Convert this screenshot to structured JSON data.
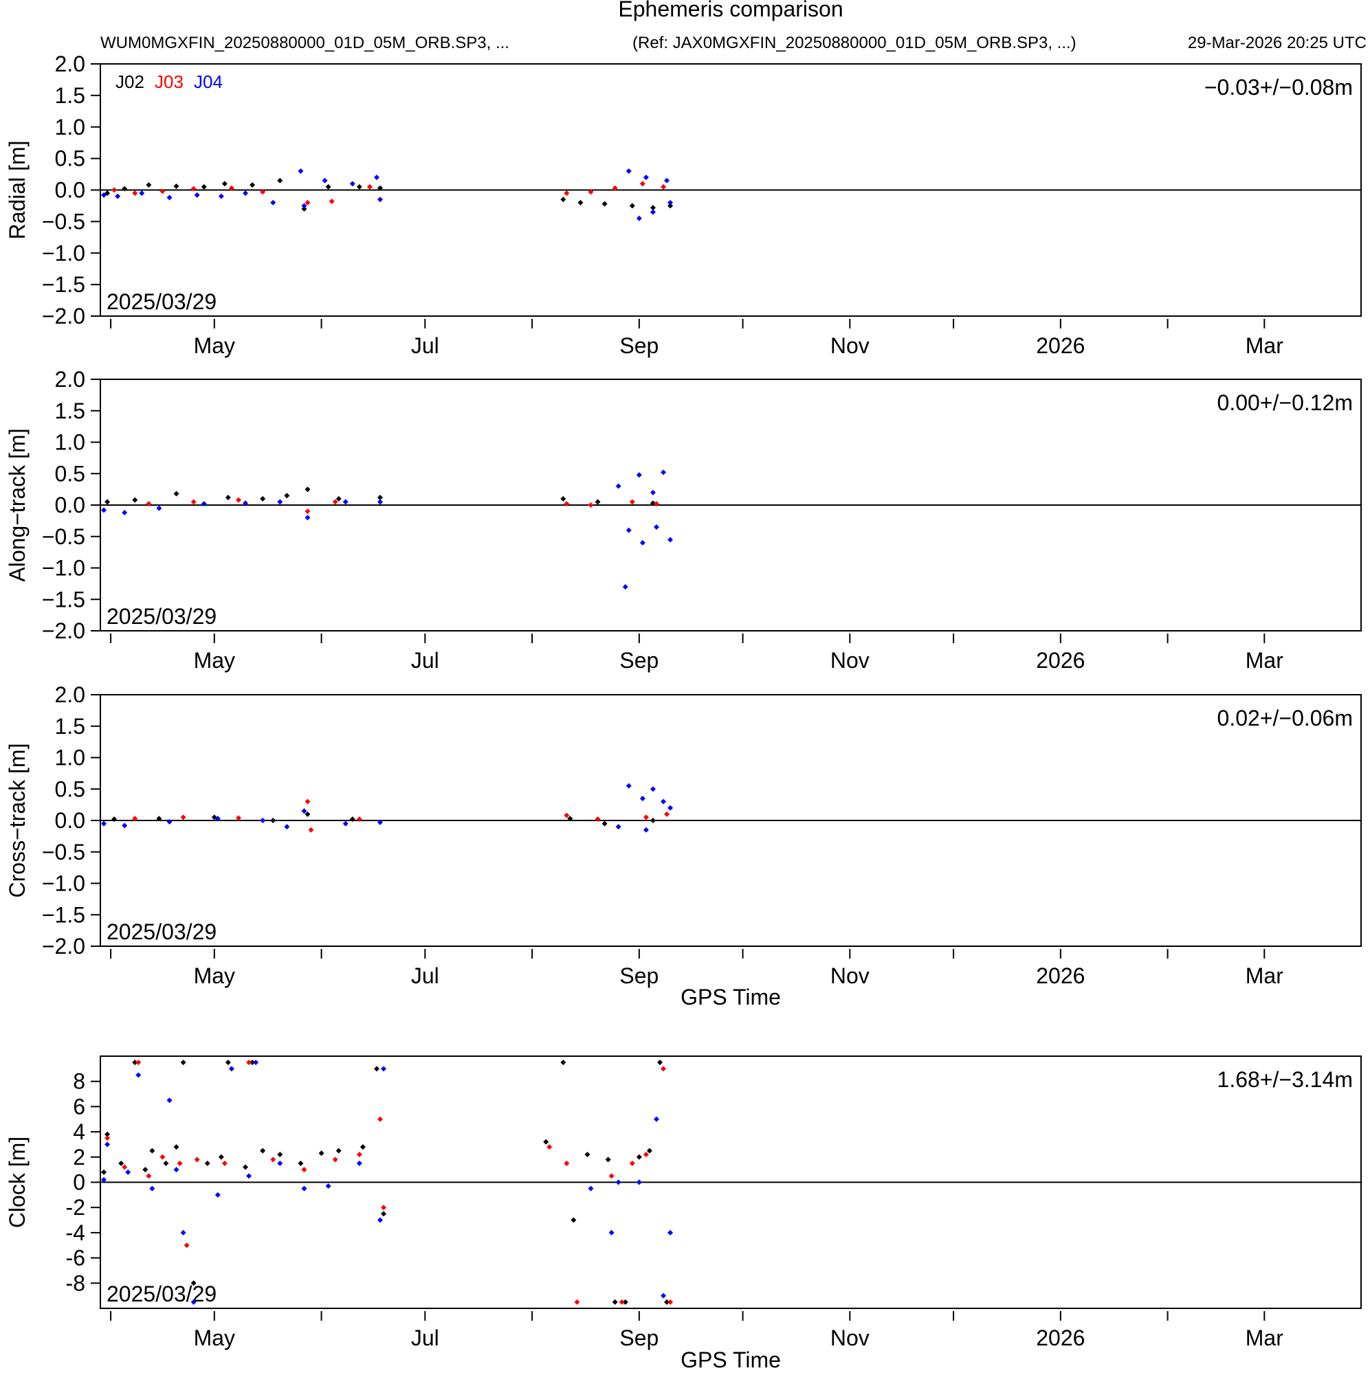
{
  "header": {
    "title": "Ephemeris comparison",
    "file_label": "WUM0MGXFIN_20250880000_01D_05M_ORB.SP3, ...",
    "ref_label": "(Ref: JAX0MGXFIN_20250880000_01D_05M_ORB.SP3, ...)",
    "generated": "29-Mar-2026 20:25 UTC"
  },
  "legend": [
    {
      "name": "J02",
      "color": "#000000"
    },
    {
      "name": "J03",
      "color": "#ff0000"
    },
    {
      "name": "J04",
      "color": "#0000ff"
    }
  ],
  "x_axis": {
    "label": "GPS Time",
    "range": [
      "2025-03-29",
      "2026-03-29"
    ],
    "ticks": [
      {
        "date": "2025-05-01",
        "label": "May"
      },
      {
        "date": "2025-07-01",
        "label": "Jul"
      },
      {
        "date": "2025-09-01",
        "label": "Sep"
      },
      {
        "date": "2025-11-01",
        "label": "Nov"
      },
      {
        "date": "2026-01-01",
        "label": "2026"
      },
      {
        "date": "2026-03-01",
        "label": "Mar"
      }
    ],
    "minor_ticks": [
      "2025-04-01",
      "2025-06-01",
      "2025-08-01",
      "2025-10-01",
      "2025-12-01",
      "2026-02-01"
    ]
  },
  "chart_data": [
    {
      "type": "scatter",
      "ylabel": "Radial [m]",
      "ylim": [
        -2.0,
        2.0
      ],
      "yticks": [
        "2.0",
        "1.5",
        "1.0",
        "0.5",
        "0.0",
        "−0.5",
        "−1.0",
        "−1.5",
        "−2.0"
      ],
      "stat": "−0.03+/−0.08m",
      "start_date": "2025/03/29",
      "series": [
        {
          "name": "J02",
          "points": [
            [
              "2025-03-31",
              -0.05
            ],
            [
              "2025-04-05",
              0.02
            ],
            [
              "2025-04-12",
              0.08
            ],
            [
              "2025-04-20",
              0.06
            ],
            [
              "2025-04-28",
              0.05
            ],
            [
              "2025-05-04",
              0.1
            ],
            [
              "2025-05-12",
              0.08
            ],
            [
              "2025-05-20",
              0.15
            ],
            [
              "2025-05-27",
              -0.3
            ],
            [
              "2025-06-03",
              0.05
            ],
            [
              "2025-06-12",
              0.05
            ],
            [
              "2025-06-18",
              0.03
            ],
            [
              "2025-08-10",
              -0.15
            ],
            [
              "2025-08-15",
              -0.2
            ],
            [
              "2025-08-22",
              -0.22
            ],
            [
              "2025-08-30",
              -0.25
            ],
            [
              "2025-09-05",
              -0.28
            ],
            [
              "2025-09-10",
              -0.25
            ]
          ]
        },
        {
          "name": "J03",
          "points": [
            [
              "2025-04-02",
              0.0
            ],
            [
              "2025-04-08",
              -0.05
            ],
            [
              "2025-04-16",
              -0.02
            ],
            [
              "2025-04-25",
              0.02
            ],
            [
              "2025-05-06",
              0.03
            ],
            [
              "2025-05-15",
              -0.03
            ],
            [
              "2025-05-28",
              -0.2
            ],
            [
              "2025-06-04",
              -0.18
            ],
            [
              "2025-06-15",
              0.05
            ],
            [
              "2025-08-11",
              -0.05
            ],
            [
              "2025-08-18",
              -0.03
            ],
            [
              "2025-08-25",
              0.03
            ],
            [
              "2025-09-02",
              0.1
            ],
            [
              "2025-09-08",
              0.05
            ]
          ]
        },
        {
          "name": "J04",
          "points": [
            [
              "2025-03-30",
              -0.08
            ],
            [
              "2025-04-03",
              -0.1
            ],
            [
              "2025-04-10",
              -0.05
            ],
            [
              "2025-04-18",
              -0.12
            ],
            [
              "2025-04-26",
              -0.08
            ],
            [
              "2025-05-03",
              -0.1
            ],
            [
              "2025-05-10",
              -0.05
            ],
            [
              "2025-05-18",
              -0.2
            ],
            [
              "2025-05-26",
              0.3
            ],
            [
              "2025-05-27",
              -0.25
            ],
            [
              "2025-06-02",
              0.15
            ],
            [
              "2025-06-10",
              0.1
            ],
            [
              "2025-06-17",
              0.2
            ],
            [
              "2025-06-18",
              -0.15
            ],
            [
              "2025-08-29",
              0.3
            ],
            [
              "2025-09-01",
              -0.45
            ],
            [
              "2025-09-03",
              0.2
            ],
            [
              "2025-09-05",
              -0.35
            ],
            [
              "2025-09-09",
              0.15
            ],
            [
              "2025-09-10",
              -0.2
            ]
          ]
        }
      ]
    },
    {
      "type": "scatter",
      "ylabel": "Along−track [m]",
      "ylim": [
        -2.0,
        2.0
      ],
      "yticks": [
        "2.0",
        "1.5",
        "1.0",
        "0.5",
        "0.0",
        "−0.5",
        "−1.0",
        "−1.5",
        "−2.0"
      ],
      "stat": "0.00+/−0.12m",
      "start_date": "2025/03/29",
      "series": [
        {
          "name": "J02",
          "points": [
            [
              "2025-03-31",
              0.05
            ],
            [
              "2025-04-08",
              0.08
            ],
            [
              "2025-04-20",
              0.18
            ],
            [
              "2025-05-05",
              0.12
            ],
            [
              "2025-05-15",
              0.1
            ],
            [
              "2025-05-22",
              0.15
            ],
            [
              "2025-05-28",
              0.25
            ],
            [
              "2025-06-06",
              0.1
            ],
            [
              "2025-06-18",
              0.12
            ],
            [
              "2025-08-10",
              0.1
            ],
            [
              "2025-08-20",
              0.05
            ],
            [
              "2025-09-05",
              0.03
            ]
          ]
        },
        {
          "name": "J03",
          "points": [
            [
              "2025-04-12",
              0.02
            ],
            [
              "2025-04-25",
              0.05
            ],
            [
              "2025-05-08",
              0.08
            ],
            [
              "2025-05-28",
              -0.1
            ],
            [
              "2025-06-05",
              0.05
            ],
            [
              "2025-08-11",
              0.02
            ],
            [
              "2025-08-18",
              0.0
            ],
            [
              "2025-08-30",
              0.05
            ],
            [
              "2025-09-06",
              0.02
            ]
          ]
        },
        {
          "name": "J04",
          "points": [
            [
              "2025-03-30",
              -0.08
            ],
            [
              "2025-04-05",
              -0.12
            ],
            [
              "2025-04-15",
              -0.05
            ],
            [
              "2025-04-28",
              0.02
            ],
            [
              "2025-05-10",
              0.03
            ],
            [
              "2025-05-20",
              0.05
            ],
            [
              "2025-05-28",
              -0.2
            ],
            [
              "2025-06-08",
              0.05
            ],
            [
              "2025-06-18",
              0.05
            ],
            [
              "2025-08-26",
              0.3
            ],
            [
              "2025-08-28",
              -1.3
            ],
            [
              "2025-08-29",
              -0.4
            ],
            [
              "2025-09-01",
              0.48
            ],
            [
              "2025-09-02",
              -0.6
            ],
            [
              "2025-09-05",
              0.2
            ],
            [
              "2025-09-06",
              -0.35
            ],
            [
              "2025-09-08",
              0.52
            ],
            [
              "2025-09-10",
              -0.55
            ]
          ]
        }
      ]
    },
    {
      "type": "scatter",
      "ylabel": "Cross−track [m]",
      "ylim": [
        -2.0,
        2.0
      ],
      "yticks": [
        "2.0",
        "1.5",
        "1.0",
        "0.5",
        "0.0",
        "−0.5",
        "−1.0",
        "−1.5",
        "−2.0"
      ],
      "stat": "0.02+/−0.06m",
      "start_date": "2025/03/29",
      "series": [
        {
          "name": "J02",
          "points": [
            [
              "2025-04-02",
              0.02
            ],
            [
              "2025-04-15",
              0.03
            ],
            [
              "2025-05-01",
              0.05
            ],
            [
              "2025-05-18",
              0.0
            ],
            [
              "2025-05-28",
              0.1
            ],
            [
              "2025-06-10",
              0.02
            ],
            [
              "2025-08-12",
              0.03
            ],
            [
              "2025-08-22",
              -0.05
            ],
            [
              "2025-09-05",
              0.0
            ]
          ]
        },
        {
          "name": "J03",
          "points": [
            [
              "2025-04-08",
              0.03
            ],
            [
              "2025-04-22",
              0.05
            ],
            [
              "2025-05-08",
              0.04
            ],
            [
              "2025-05-28",
              0.3
            ],
            [
              "2025-05-29",
              -0.15
            ],
            [
              "2025-06-12",
              0.02
            ],
            [
              "2025-08-11",
              0.08
            ],
            [
              "2025-08-20",
              0.02
            ],
            [
              "2025-09-03",
              0.05
            ],
            [
              "2025-09-09",
              0.1
            ]
          ]
        },
        {
          "name": "J04",
          "points": [
            [
              "2025-03-30",
              -0.05
            ],
            [
              "2025-04-05",
              -0.08
            ],
            [
              "2025-04-18",
              -0.02
            ],
            [
              "2025-05-02",
              0.03
            ],
            [
              "2025-05-15",
              0.0
            ],
            [
              "2025-05-22",
              -0.1
            ],
            [
              "2025-05-27",
              0.15
            ],
            [
              "2025-06-08",
              -0.05
            ],
            [
              "2025-06-18",
              -0.03
            ],
            [
              "2025-08-26",
              -0.1
            ],
            [
              "2025-08-29",
              0.55
            ],
            [
              "2025-09-02",
              0.35
            ],
            [
              "2025-09-03",
              -0.15
            ],
            [
              "2025-09-05",
              0.5
            ],
            [
              "2025-09-08",
              0.3
            ],
            [
              "2025-09-10",
              0.2
            ]
          ]
        }
      ]
    },
    {
      "type": "scatter",
      "ylabel": "Clock [m]",
      "ylim": [
        -10,
        10
      ],
      "yticks": [
        "8",
        "6",
        "4",
        "2",
        "0",
        "-2",
        "-4",
        "-6",
        "-8"
      ],
      "stat": "1.68+/−3.14m",
      "start_date": "2025/03/29",
      "series": [
        {
          "name": "J02",
          "points": [
            [
              "2025-03-30",
              0.8
            ],
            [
              "2025-03-31",
              3.8
            ],
            [
              "2025-04-04",
              1.5
            ],
            [
              "2025-04-08",
              9.5
            ],
            [
              "2025-04-11",
              1.0
            ],
            [
              "2025-04-13",
              2.5
            ],
            [
              "2025-04-17",
              1.5
            ],
            [
              "2025-04-20",
              2.8
            ],
            [
              "2025-04-22",
              9.5
            ],
            [
              "2025-04-25",
              -8.0
            ],
            [
              "2025-04-29",
              1.5
            ],
            [
              "2025-05-03",
              2.0
            ],
            [
              "2025-05-05",
              9.5
            ],
            [
              "2025-05-10",
              1.2
            ],
            [
              "2025-05-12",
              9.5
            ],
            [
              "2025-05-15",
              2.5
            ],
            [
              "2025-05-20",
              2.2
            ],
            [
              "2025-05-26",
              1.5
            ],
            [
              "2025-06-01",
              2.3
            ],
            [
              "2025-06-06",
              2.5
            ],
            [
              "2025-06-13",
              2.8
            ],
            [
              "2025-06-17",
              9.0
            ],
            [
              "2025-06-19",
              -2.5
            ],
            [
              "2025-08-05",
              3.2
            ],
            [
              "2025-08-10",
              9.5
            ],
            [
              "2025-08-13",
              -3.0
            ],
            [
              "2025-08-17",
              2.2
            ],
            [
              "2025-08-23",
              1.8
            ],
            [
              "2025-08-25",
              -9.5
            ],
            [
              "2025-08-28",
              -9.5
            ],
            [
              "2025-09-01",
              2.0
            ],
            [
              "2025-09-04",
              2.5
            ],
            [
              "2025-09-07",
              9.5
            ],
            [
              "2025-09-09",
              -9.5
            ]
          ]
        },
        {
          "name": "J03",
          "points": [
            [
              "2025-03-31",
              3.5
            ],
            [
              "2025-04-05",
              1.2
            ],
            [
              "2025-04-09",
              9.5
            ],
            [
              "2025-04-12",
              0.5
            ],
            [
              "2025-04-16",
              2.0
            ],
            [
              "2025-04-21",
              1.5
            ],
            [
              "2025-04-23",
              -5.0
            ],
            [
              "2025-04-26",
              1.8
            ],
            [
              "2025-05-04",
              1.5
            ],
            [
              "2025-05-11",
              9.5
            ],
            [
              "2025-05-18",
              1.8
            ],
            [
              "2025-05-27",
              1.0
            ],
            [
              "2025-06-05",
              1.8
            ],
            [
              "2025-06-12",
              2.2
            ],
            [
              "2025-06-18",
              5.0
            ],
            [
              "2025-06-19",
              -2.0
            ],
            [
              "2025-08-06",
              2.8
            ],
            [
              "2025-08-11",
              1.5
            ],
            [
              "2025-08-14",
              -9.5
            ],
            [
              "2025-08-24",
              0.5
            ],
            [
              "2025-08-27",
              -9.5
            ],
            [
              "2025-08-30",
              1.5
            ],
            [
              "2025-09-03",
              2.2
            ],
            [
              "2025-09-08",
              9.0
            ],
            [
              "2025-09-10",
              -9.5
            ]
          ]
        },
        {
          "name": "J04",
          "points": [
            [
              "2025-03-30",
              0.2
            ],
            [
              "2025-03-31",
              3.0
            ],
            [
              "2025-04-06",
              0.8
            ],
            [
              "2025-04-09",
              8.5
            ],
            [
              "2025-04-13",
              -0.5
            ],
            [
              "2025-04-18",
              6.5
            ],
            [
              "2025-04-20",
              1.0
            ],
            [
              "2025-04-22",
              -4.0
            ],
            [
              "2025-04-25",
              -9.5
            ],
            [
              "2025-05-02",
              -1.0
            ],
            [
              "2025-05-06",
              9.0
            ],
            [
              "2025-05-11",
              0.5
            ],
            [
              "2025-05-13",
              9.5
            ],
            [
              "2025-05-20",
              1.5
            ],
            [
              "2025-05-27",
              -0.5
            ],
            [
              "2025-06-03",
              -0.3
            ],
            [
              "2025-06-12",
              1.5
            ],
            [
              "2025-06-18",
              -3.0
            ],
            [
              "2025-06-19",
              9.0
            ],
            [
              "2025-08-18",
              -0.5
            ],
            [
              "2025-08-24",
              -4.0
            ],
            [
              "2025-08-26",
              0.0
            ],
            [
              "2025-09-01",
              0.0
            ],
            [
              "2025-09-06",
              5.0
            ],
            [
              "2025-09-08",
              -9.0
            ],
            [
              "2025-09-10",
              -4.0
            ]
          ]
        }
      ]
    }
  ]
}
